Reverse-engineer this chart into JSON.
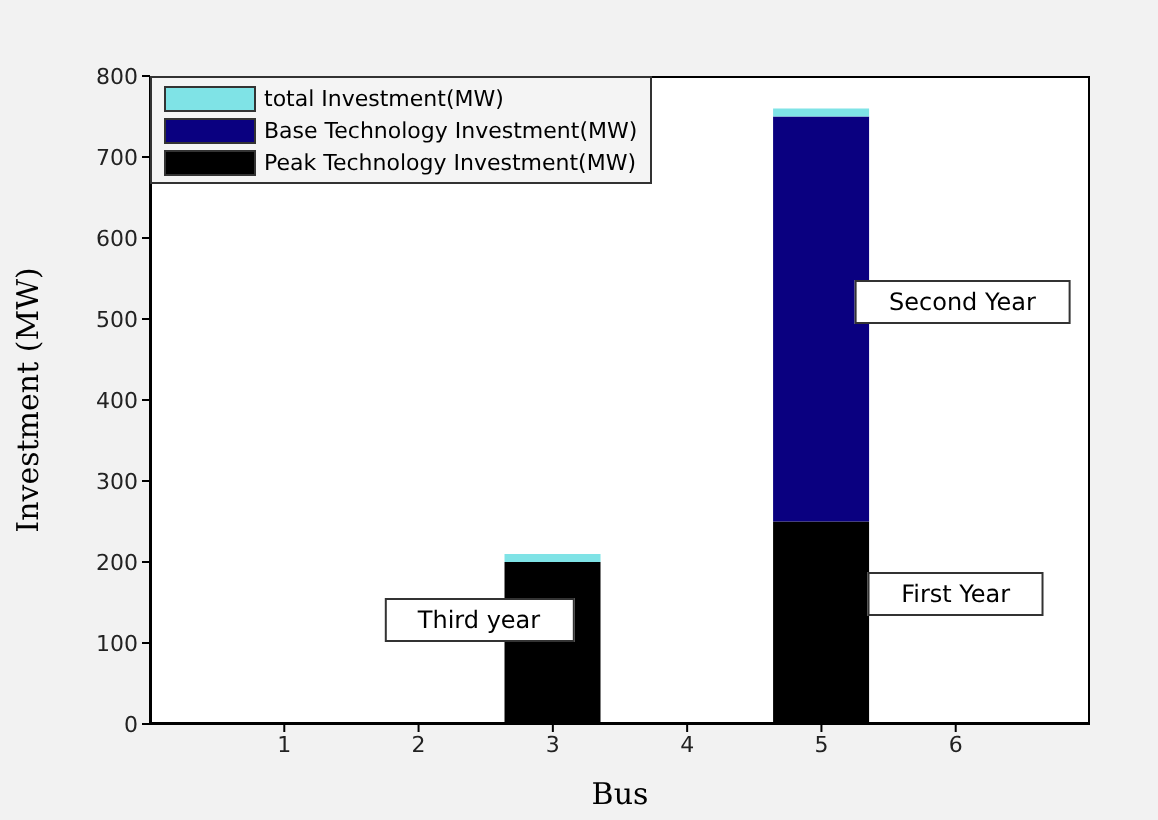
{
  "chart_data": {
    "type": "bar",
    "stacked": true,
    "xlabel": "Bus",
    "ylabel": "Investment (MW)",
    "categories": [
      "1",
      "2",
      "3",
      "4",
      "5",
      "6"
    ],
    "series": [
      {
        "name": "Peak Technology Investment(MW)",
        "color": "#000000",
        "values": [
          0,
          0,
          200,
          0,
          250,
          0
        ]
      },
      {
        "name": "Base Technology Investment(MW)",
        "color": "#0a0080",
        "values": [
          0,
          0,
          0,
          0,
          500,
          0
        ]
      },
      {
        "name": "total Investment(MW)",
        "color": "#7fe3e6",
        "values": [
          0,
          0,
          10,
          0,
          10,
          0
        ]
      }
    ],
    "ylim": [
      0,
      800
    ],
    "yticks": [
      0,
      100,
      200,
      300,
      400,
      500,
      600,
      700,
      800
    ],
    "grid": false,
    "legend": "top left",
    "annotations": [
      "Third year",
      "Second Year",
      "First Year"
    ]
  }
}
